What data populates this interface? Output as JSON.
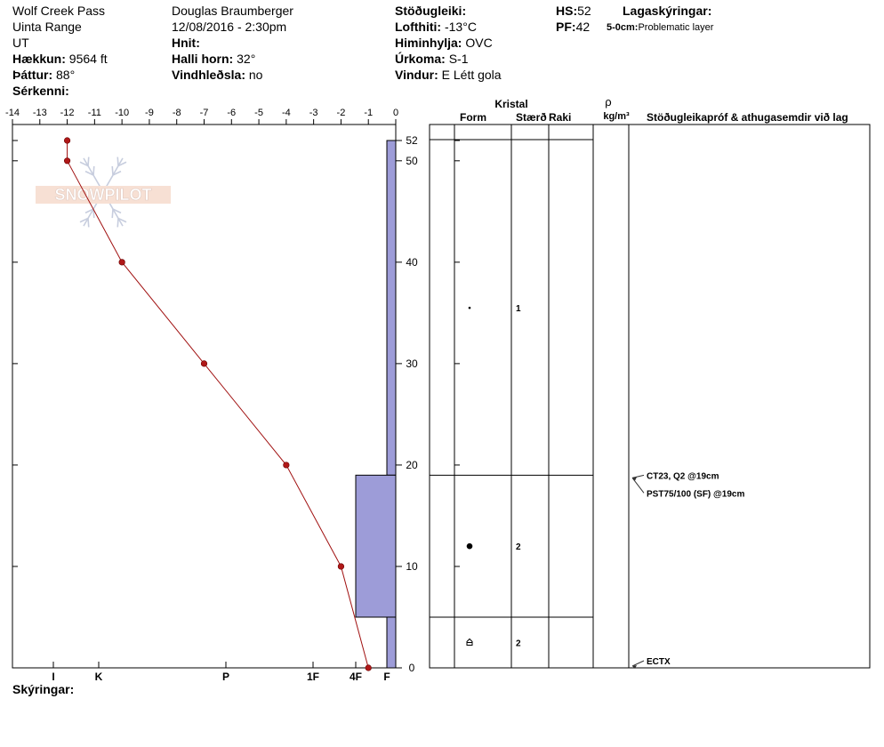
{
  "header": {
    "location": "Wolf Creek Pass",
    "range": "Uinta Range",
    "state": "UT",
    "elevation_label": "Hækkun:",
    "elevation_value": "9564 ft",
    "aspect_label": "Þáttur:",
    "aspect_value": "88°",
    "features_label": "Sérkenni:",
    "observer": "Douglas Braumberger",
    "datetime": "12/08/2016 - 2:30pm",
    "coords_label": "Hnit:",
    "slope_label": "Halli horn:",
    "slope_value": "32°",
    "wind_loading_label": "Vindhleðsla:",
    "wind_loading_value": "no",
    "stability_label": "Stöðugleiki:",
    "air_temp_label": "Lofthiti:",
    "air_temp_value": "-13°C",
    "sky_label": "Himinhylja:",
    "sky_value": "OVC",
    "precip_label": "Úrkoma:",
    "precip_value": "S-1",
    "wind_label": "Vindur:",
    "wind_value": "E Létt gola",
    "hs_label": "HS:",
    "hs_value": "52",
    "pf_label": "PF:",
    "pf_value": "42",
    "layer_notes_label": "Lagaskýringar:",
    "layer_note_range": "5-0cm:",
    "layer_note_text": "Problematic layer"
  },
  "footer": {
    "notes_label": "Skýringar:"
  },
  "watermark": {
    "text": "SNOWPILOT"
  },
  "right_table": {
    "crystal_label": "Kristal",
    "form_label": "Form",
    "size_label": "Stærð",
    "moisture_label": "Raki",
    "rho_label": "ρ",
    "density_unit": "kg/m³",
    "tests_label": "Stöðugleikapróf & athugasemdir við lag",
    "layers": [
      {
        "form": "dot",
        "size": "1"
      },
      {
        "form": "circle",
        "size": "2"
      },
      {
        "form": "depth-hoar",
        "size": "2"
      }
    ],
    "test_results": [
      "CT23, Q2 @19cm",
      "PST75/100 (SF) @19cm",
      "ECTX"
    ]
  },
  "chart_data": {
    "type": "snow-profile",
    "temp_axis": {
      "ticks": [
        -14,
        -13,
        -12,
        -11,
        -10,
        -9,
        -8,
        -7,
        -6,
        -5,
        -4,
        -3,
        -2,
        -1,
        0
      ],
      "range": [
        -14,
        0
      ]
    },
    "depth_axis": {
      "ticks": [
        0,
        10,
        20,
        30,
        40,
        50,
        52
      ],
      "range": [
        0,
        52
      ]
    },
    "hardness_axis": {
      "ticks": [
        "I",
        "K",
        "P",
        "1F",
        "4F",
        "F"
      ]
    },
    "temperature_profile": [
      {
        "depth": 52,
        "temp": -12
      },
      {
        "depth": 50,
        "temp": -12
      },
      {
        "depth": 40,
        "temp": -10
      },
      {
        "depth": 30,
        "temp": -7
      },
      {
        "depth": 20,
        "temp": -4
      },
      {
        "depth": 10,
        "temp": -2
      },
      {
        "depth": 0,
        "temp": -1
      }
    ],
    "layer_boundaries": [
      52,
      19,
      5,
      0
    ],
    "hardness_layers": [
      {
        "top": 52,
        "bottom": 19,
        "hardness": "F"
      },
      {
        "top": 19,
        "bottom": 5,
        "hardness": "4F"
      },
      {
        "top": 5,
        "bottom": 0,
        "hardness": "F"
      }
    ],
    "test_depths": [
      19,
      19,
      0
    ],
    "colors": {
      "temp_line": "#a01010",
      "temp_point": "#b01818",
      "hardness_fill": "#9d9cd8"
    }
  }
}
